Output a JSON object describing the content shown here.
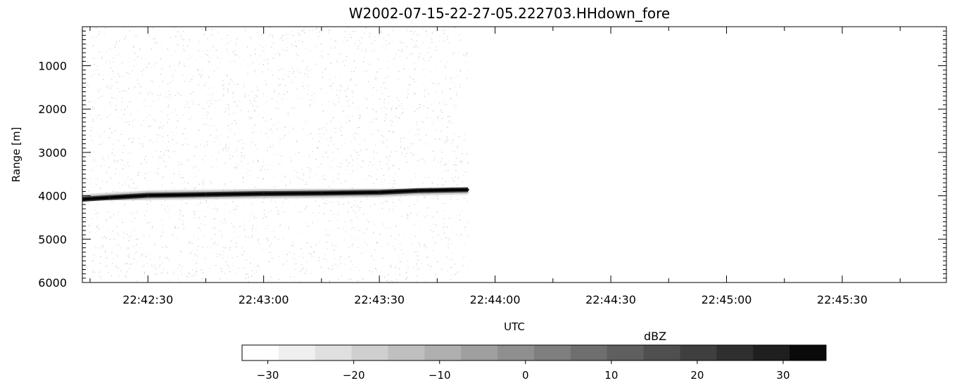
{
  "chart_data": {
    "type": "heatmap",
    "title": "W2002-07-15-22-27-05.222703.HHdown_fore",
    "xlabel": "UTC",
    "ylabel": "Range [m]",
    "x_ticks": [
      "22:42:30",
      "22:43:00",
      "22:43:30",
      "22:44:00",
      "22:44:30",
      "22:45:00",
      "22:45:30"
    ],
    "y_ticks": [
      1000,
      2000,
      3000,
      4000,
      5000,
      6000
    ],
    "xlim": [
      "22:42:13",
      "22:45:57"
    ],
    "ylim": [
      6000,
      100
    ],
    "y_inverted": true,
    "data_end_time": "22:43:53",
    "surface_echo": {
      "description_values": "strong return band; range in m vs UTC",
      "points": [
        {
          "t": "22:42:13",
          "range": 4080
        },
        {
          "t": "22:42:20",
          "range": 4040
        },
        {
          "t": "22:42:30",
          "range": 3990
        },
        {
          "t": "22:42:45",
          "range": 3970
        },
        {
          "t": "22:43:00",
          "range": 3950
        },
        {
          "t": "22:43:15",
          "range": 3940
        },
        {
          "t": "22:43:30",
          "range": 3920
        },
        {
          "t": "22:43:40",
          "range": 3880
        },
        {
          "t": "22:43:53",
          "range": 3860
        }
      ]
    },
    "colorbar": {
      "label": "dBZ",
      "tick_labels": [
        "-30",
        "-20",
        "-10",
        "0",
        "10",
        "20",
        "30"
      ],
      "tick_values": [
        -30,
        -20,
        -10,
        0,
        10,
        20,
        30
      ],
      "range": [
        -33,
        35
      ],
      "n_bins": 16,
      "colors": [
        "#ffffff",
        "#efefef",
        "#dfdfdf",
        "#cfcfcf",
        "#bfbfbf",
        "#afafaf",
        "#9f9f9f",
        "#8f8f8f",
        "#7f7f7f",
        "#6f6f6f",
        "#5f5f5f",
        "#4f4f4f",
        "#3f3f3f",
        "#2f2f2f",
        "#1f1f1f",
        "#0a0a0a"
      ]
    }
  }
}
